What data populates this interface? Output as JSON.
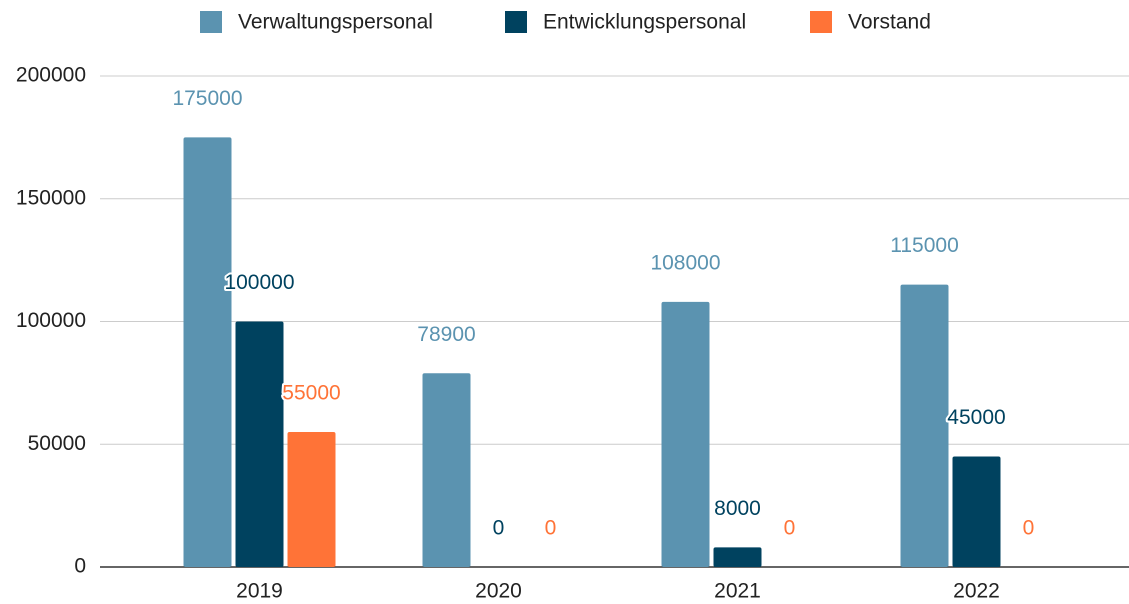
{
  "chart_data": {
    "type": "bar",
    "categories": [
      "2019",
      "2020",
      "2021",
      "2022"
    ],
    "series": [
      {
        "name": "Verwaltungspersonal",
        "color": "#5b93b0",
        "values": [
          175000,
          78900,
          108000,
          115000
        ]
      },
      {
        "name": "Entwicklungspersonal",
        "color": "#00425f",
        "values": [
          100000,
          0,
          8000,
          45000
        ]
      },
      {
        "name": "Vorstand",
        "color": "#ff7337",
        "values": [
          55000,
          0,
          0,
          0
        ]
      }
    ],
    "ylim": [
      0,
      200000
    ],
    "yticks": [
      0,
      50000,
      100000,
      150000,
      200000
    ],
    "grid": true,
    "legend": "top"
  }
}
